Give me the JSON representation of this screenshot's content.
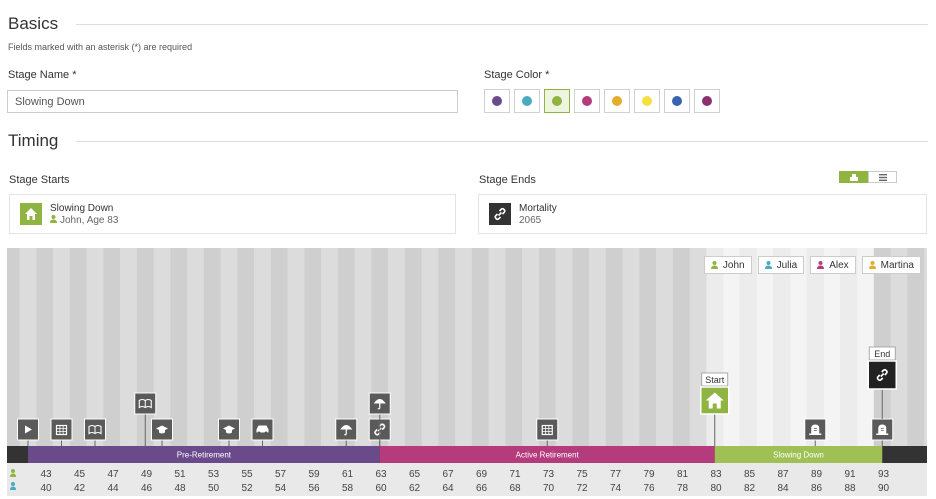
{
  "basics": {
    "title": "Basics",
    "required_note": "Fields marked with an asterisk (*) are required",
    "stage_name_label": "Stage Name *",
    "stage_name_value": "Slowing Down",
    "stage_color_label": "Stage Color *",
    "colors": [
      "#6b4a8c",
      "#4aabc0",
      "#8fb441",
      "#b43c7c",
      "#e2ad2b",
      "#f5e042",
      "#3a63b0",
      "#8b2f6e"
    ],
    "selected_color_index": 2
  },
  "timing": {
    "title": "Timing",
    "starts_label": "Stage Starts",
    "ends_label": "Stage Ends",
    "start_box": {
      "title": "Slowing Down",
      "person": "John, Age 83",
      "icon": "home-icon",
      "color": "#8fb441"
    },
    "end_box": {
      "title": "Mortality",
      "sub": "2065",
      "icon": "link-icon",
      "color": "#333333"
    },
    "view_toggle": [
      {
        "icon": "timeline-view-icon",
        "active": true
      },
      {
        "icon": "list-view-icon",
        "active": false
      }
    ]
  },
  "timeline": {
    "people": [
      {
        "name": "John",
        "color": "#8fb441"
      },
      {
        "name": "Julia",
        "color": "#4aabc0"
      },
      {
        "name": "Alex",
        "color": "#b43c7c"
      },
      {
        "name": "Martina",
        "color": "#e2ad2b"
      }
    ],
    "stages": [
      {
        "name": "Pre-Retirement",
        "color": "#6b4a8c",
        "from_age": 42,
        "to_age": 63
      },
      {
        "name": "Active Retirement",
        "color": "#b43c7c",
        "from_age": 63,
        "to_age": 83
      },
      {
        "name": "Slowing Down",
        "color": "#9fc054",
        "from_age": 83,
        "to_age": 93
      }
    ],
    "john_ages": [
      43,
      45,
      47,
      49,
      51,
      53,
      55,
      57,
      59,
      61,
      63,
      65,
      67,
      69,
      71,
      73,
      75,
      77,
      79,
      81,
      83,
      85,
      87,
      89,
      91,
      93
    ],
    "julia_ages": [
      40,
      42,
      44,
      46,
      48,
      50,
      52,
      54,
      56,
      58,
      60,
      62,
      64,
      66,
      68,
      70,
      72,
      74,
      76,
      78,
      80,
      82,
      84,
      86,
      88,
      90
    ],
    "events": [
      {
        "age": 42,
        "icon": "play-icon",
        "level": 0
      },
      {
        "age": 44,
        "icon": "calendar-icon",
        "level": 0
      },
      {
        "age": 46,
        "icon": "book-icon",
        "level": 0
      },
      {
        "age": 49,
        "icon": "book-icon",
        "level": 1
      },
      {
        "age": 50,
        "icon": "graduation-icon",
        "level": 0
      },
      {
        "age": 54,
        "icon": "graduation-icon",
        "level": 0
      },
      {
        "age": 56,
        "icon": "car-icon",
        "level": 0
      },
      {
        "age": 61,
        "icon": "umbrella-icon",
        "level": 0
      },
      {
        "age": 63,
        "icon": "link-icon",
        "level": 0
      },
      {
        "age": 63,
        "icon": "umbrella-icon",
        "level": 1
      },
      {
        "age": 73,
        "icon": "calendar-icon",
        "level": 0
      },
      {
        "age": 89,
        "icon": "tombstone-icon",
        "level": 0
      },
      {
        "age": 93,
        "icon": "tombstone-icon",
        "level": 0
      }
    ],
    "start_marker": {
      "label": "Start",
      "age": 83,
      "icon": "home-icon",
      "color": "#8fb441"
    },
    "end_marker": {
      "label": "End",
      "age": 93,
      "icon": "link-icon",
      "color": "#222222"
    }
  }
}
